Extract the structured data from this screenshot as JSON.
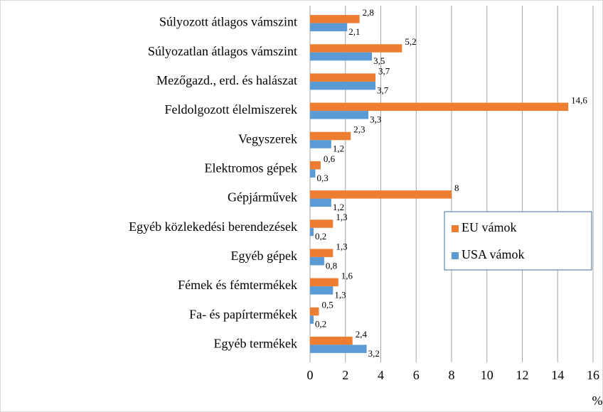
{
  "chart_data": {
    "type": "barh",
    "categories": [
      "Súlyozott átlagos vámszint",
      "Súlyozatlan átlagos vámszint",
      "Mezőgazd., erd. és halászat",
      "Feldolgozott élelmiszerek",
      "Vegyszerek",
      "Elektromos gépek",
      "Gépjárművek",
      "Egyéb közlekedési berendezések",
      "Egyéb gépek",
      "Fémek és fémtermékek",
      "Fa- és papírtermékek",
      "Egyéb termékek"
    ],
    "series": [
      {
        "name": "EU vámok",
        "color": "#ed7d31",
        "values": [
          2.8,
          5.2,
          3.7,
          14.6,
          2.3,
          0.6,
          8,
          1.3,
          1.3,
          1.6,
          0.5,
          2.4
        ],
        "value_labels": [
          "2,8",
          "5,2",
          "3,7",
          "14,6",
          "2,3",
          "0,6",
          "8",
          "1,3",
          "1,3",
          "1,6",
          "0,5",
          "2,4"
        ]
      },
      {
        "name": "USA vámok",
        "color": "#5b9bd5",
        "values": [
          2.1,
          3.5,
          3.7,
          3.3,
          1.2,
          0.3,
          1.2,
          0.2,
          0.8,
          1.3,
          0.2,
          3.2
        ],
        "value_labels": [
          "2,1",
          "3,5",
          "3,7",
          "3,3",
          "1,2",
          "0,3",
          "1,2",
          "0,2",
          "0,8",
          "1,3",
          "0,2",
          "3,2"
        ]
      }
    ],
    "x_label": "%",
    "xlim": [
      0,
      16
    ],
    "xticks": [
      0,
      2,
      4,
      6,
      8,
      10,
      12,
      14,
      16
    ],
    "grid": true,
    "legend": "right"
  }
}
